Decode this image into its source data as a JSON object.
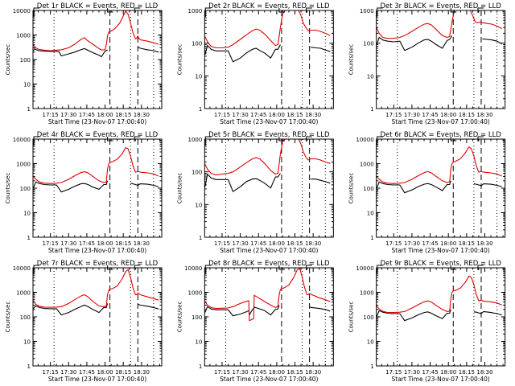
{
  "figure": {
    "xlabel": "Start Time (23-Nov-07 17:00:40)",
    "ylabel": "Counts/sec",
    "x_ticks": [
      "17:15",
      "17:30",
      "17:45",
      "18:00",
      "18:15",
      "18:30"
    ],
    "x_tick_minutes": [
      15,
      30,
      45,
      60,
      75,
      90
    ],
    "x_range_minutes": [
      0.67,
      106.67
    ],
    "dashed_lines_minutes": [
      64,
      87
    ],
    "dotted_lines_minutes": [
      18,
      81,
      100
    ],
    "marker_S_minutes": 64,
    "marker_E_minutes": 87,
    "colors": {
      "events": "#000000",
      "lld": "#e00000",
      "axes": "#000000"
    }
  },
  "chart_data": [
    {
      "type": "line",
      "title": "Det 1r BLACK = Events, RED = LLD",
      "ylim": [
        1,
        10000
      ],
      "yticks": [
        "1",
        "10",
        "100",
        "1000",
        "10000"
      ],
      "yscale": "log",
      "x": [
        1,
        2,
        5,
        10,
        15,
        20,
        22,
        24,
        30,
        35,
        40,
        43,
        45,
        50,
        55,
        57,
        60,
        61,
        62,
        63,
        64,
        65,
        68,
        72,
        75,
        77,
        79,
        81,
        83,
        85,
        86,
        87,
        88,
        90,
        95,
        100,
        104
      ],
      "series": [
        {
          "name": "LLD (red)",
          "values": [
            400,
            330,
            260,
            240,
            230,
            240,
            245,
            250,
            300,
            420,
            650,
            780,
            620,
            420,
            280,
            245,
            250,
            400,
            900,
            1300,
            1400,
            1450,
            1800,
            3000,
            6000,
            9500,
            7000,
            3000,
            1200,
            700,
            750,
            900,
            700,
            620,
            560,
            480,
            420
          ]
        },
        {
          "name": "Events (black)",
          "values": [
            230,
            270,
            230,
            220,
            215,
            215,
            210,
            140,
            170,
            200,
            250,
            280,
            250,
            190,
            150,
            130,
            220,
            230,
            250,
            null,
            null,
            null,
            null,
            null,
            null,
            null,
            null,
            null,
            null,
            null,
            null,
            320,
            300,
            280,
            250,
            230,
            200
          ]
        }
      ]
    },
    {
      "type": "line",
      "title": "Det 2r BLACK = Events, RED = LLD",
      "ylim": [
        1,
        1000
      ],
      "yticks": [
        "1",
        "10",
        "100",
        "1000"
      ],
      "yscale": "log",
      "x": [
        1,
        3,
        6,
        10,
        15,
        20,
        24,
        30,
        35,
        40,
        43,
        46,
        50,
        55,
        59,
        61,
        63,
        65,
        67,
        78,
        80,
        82,
        84,
        86,
        88,
        92,
        96,
        100,
        104
      ],
      "series": [
        {
          "name": "LLD (red)",
          "values": [
            160,
            110,
            80,
            72,
            72,
            75,
            90,
            130,
            180,
            240,
            270,
            250,
            190,
            120,
            85,
            90,
            300,
            800,
            1000,
            1000,
            700,
            400,
            300,
            240,
            250,
            250,
            230,
            200,
            170
          ]
        },
        {
          "name": "Events (black)",
          "values": [
            45,
            85,
            65,
            58,
            58,
            58,
            27,
            35,
            50,
            65,
            70,
            60,
            50,
            35,
            65,
            65,
            90,
            null,
            null,
            null,
            null,
            null,
            null,
            null,
            75,
            72,
            70,
            62,
            55
          ]
        }
      ]
    },
    {
      "type": "line",
      "title": "Det 3r BLACK = Events, RED = LLD",
      "ylim": [
        1,
        1000
      ],
      "yticks": [
        "1",
        "10",
        "100",
        "1000"
      ],
      "yscale": "log",
      "x": [
        1,
        3,
        6,
        10,
        15,
        20,
        24,
        30,
        35,
        40,
        43,
        46,
        50,
        55,
        59,
        61,
        63,
        65,
        78,
        80,
        82,
        84,
        86,
        88,
        92,
        96,
        100,
        104
      ],
      "series": [
        {
          "name": "LLD (red)",
          "values": [
            290,
            200,
            150,
            140,
            140,
            150,
            170,
            230,
            300,
            380,
            400,
            360,
            260,
            170,
            150,
            160,
            450,
            1000,
            1000,
            700,
            450,
            420,
            440,
            420,
            400,
            380,
            330,
            280
          ]
        },
        {
          "name": "Events (black)",
          "values": [
            90,
            150,
            125,
            115,
            110,
            115,
            60,
            75,
            100,
            125,
            130,
            115,
            90,
            70,
            120,
            130,
            170,
            null,
            null,
            null,
            null,
            null,
            null,
            135,
            130,
            125,
            115,
            95
          ]
        }
      ]
    },
    {
      "type": "line",
      "title": "Det 4r BLACK = Events, RED = LLD",
      "ylim": [
        1,
        10000
      ],
      "yticks": [
        "1",
        "10",
        "100",
        "1000",
        "10000"
      ],
      "yscale": "log",
      "x": [
        1,
        3,
        6,
        10,
        15,
        20,
        24,
        30,
        35,
        40,
        43,
        46,
        50,
        55,
        59,
        61,
        62,
        63,
        64,
        66,
        70,
        74,
        77,
        79,
        81,
        83,
        85,
        87,
        89,
        95,
        100,
        104
      ],
      "series": [
        {
          "name": "LLD (red)",
          "values": [
            300,
            230,
            180,
            160,
            155,
            160,
            170,
            230,
            320,
            430,
            470,
            420,
            300,
            200,
            170,
            180,
            600,
            1000,
            1100,
            1200,
            1500,
            2500,
            4500,
            4000,
            2000,
            800,
            450,
            480,
            450,
            420,
            380,
            310
          ]
        },
        {
          "name": "Events (black)",
          "values": [
            100,
            180,
            155,
            140,
            135,
            135,
            70,
            90,
            120,
            150,
            155,
            140,
            110,
            90,
            140,
            140,
            200,
            null,
            null,
            null,
            null,
            null,
            null,
            null,
            160,
            150,
            140,
            130,
            150,
            145,
            130,
            115
          ]
        }
      ]
    },
    {
      "type": "line",
      "title": "Det 5r BLACK = Events, RED = LLD",
      "ylim": [
        1,
        1000
      ],
      "yticks": [
        "1",
        "10",
        "100",
        "1000"
      ],
      "yscale": "log",
      "x": [
        1,
        3,
        6,
        10,
        15,
        20,
        24,
        30,
        35,
        40,
        43,
        46,
        50,
        55,
        59,
        61,
        63,
        65,
        67,
        78,
        80,
        82,
        84,
        86,
        88,
        92,
        96,
        100,
        104
      ],
      "series": [
        {
          "name": "LLD (red)",
          "values": [
            170,
            120,
            90,
            80,
            85,
            90,
            100,
            140,
            190,
            250,
            270,
            250,
            180,
            110,
            85,
            90,
            350,
            850,
            1000,
            1000,
            700,
            400,
            280,
            230,
            250,
            250,
            230,
            200,
            180
          ]
        },
        {
          "name": "Events (black)",
          "values": [
            35,
            85,
            65,
            58,
            58,
            58,
            25,
            35,
            50,
            60,
            62,
            55,
            45,
            32,
            70,
            70,
            90,
            null,
            null,
            null,
            null,
            null,
            null,
            null,
            60,
            60,
            55,
            50,
            45
          ]
        }
      ]
    },
    {
      "type": "line",
      "title": "Det 6r BLACK = Events, RED = LLD",
      "ylim": [
        1,
        10000
      ],
      "yticks": [
        "1",
        "10",
        "100",
        "1000",
        "10000"
      ],
      "yscale": "log",
      "x": [
        1,
        3,
        6,
        10,
        15,
        20,
        24,
        30,
        35,
        40,
        43,
        46,
        50,
        55,
        59,
        61,
        62,
        63,
        64,
        66,
        70,
        74,
        77,
        79,
        81,
        83,
        85,
        87,
        89,
        95,
        100,
        104
      ],
      "series": [
        {
          "name": "LLD (red)",
          "values": [
            300,
            230,
            180,
            160,
            155,
            160,
            170,
            230,
            320,
            430,
            480,
            420,
            300,
            200,
            170,
            180,
            600,
            1000,
            1150,
            1250,
            1600,
            2800,
            4800,
            4000,
            2000,
            800,
            450,
            480,
            450,
            420,
            380,
            310
          ]
        },
        {
          "name": "Events (black)",
          "values": [
            100,
            180,
            155,
            140,
            135,
            135,
            65,
            85,
            115,
            145,
            155,
            140,
            110,
            80,
            140,
            140,
            200,
            null,
            null,
            null,
            null,
            null,
            null,
            null,
            150,
            145,
            135,
            125,
            150,
            145,
            130,
            115
          ]
        }
      ]
    },
    {
      "type": "line",
      "title": "Det 7r BLACK = Events, RED = LLD",
      "ylim": [
        1,
        10000
      ],
      "yticks": [
        "1",
        "10",
        "100",
        "1000",
        "10000"
      ],
      "yscale": "log",
      "x": [
        1,
        3,
        6,
        10,
        15,
        20,
        24,
        30,
        35,
        40,
        43,
        46,
        50,
        55,
        59,
        61,
        62,
        63,
        64,
        66,
        70,
        74,
        77,
        79,
        81,
        83,
        85,
        86,
        87,
        89,
        95,
        100,
        104
      ],
      "series": [
        {
          "name": "LLD (red)",
          "values": [
            450,
            320,
            270,
            250,
            245,
            250,
            260,
            350,
            500,
            700,
            800,
            650,
            420,
            280,
            260,
            270,
            800,
            1200,
            1350,
            1400,
            1800,
            3500,
            7000,
            8500,
            4000,
            1500,
            800,
            800,
            950,
            800,
            650,
            560,
            480
          ]
        },
        {
          "name": "Events (black)",
          "values": [
            220,
            280,
            240,
            220,
            215,
            215,
            120,
            150,
            200,
            260,
            300,
            260,
            200,
            150,
            240,
            240,
            350,
            null,
            null,
            null,
            null,
            null,
            null,
            null,
            null,
            null,
            null,
            null,
            330,
            300,
            270,
            240,
            210
          ]
        }
      ]
    },
    {
      "type": "line",
      "title": "Det 8r BLACK = Events, RED = LLD",
      "ylim": [
        1,
        10000
      ],
      "yticks": [
        "1",
        "10",
        "100",
        "1000",
        "10000"
      ],
      "yscale": "log",
      "x": [
        1,
        3,
        6,
        10,
        15,
        20,
        24,
        30,
        35,
        37,
        37.5,
        40,
        41,
        41.5,
        45,
        50,
        55,
        59,
        61,
        62,
        63,
        64,
        66,
        70,
        74,
        77,
        79,
        81,
        83,
        85,
        86,
        87,
        89,
        95,
        100,
        104
      ],
      "series": [
        {
          "name": "LLD (red)",
          "values": [
            420,
            300,
            240,
            220,
            225,
            230,
            260,
            350,
            430,
            450,
            70,
            80,
            85,
            750,
            600,
            420,
            300,
            240,
            260,
            800,
            1300,
            1450,
            1500,
            2000,
            4000,
            8500,
            9500,
            4000,
            1500,
            800,
            800,
            900,
            800,
            600,
            500,
            420
          ]
        },
        {
          "name": "Events (black)",
          "values": [
            150,
            260,
            210,
            195,
            195,
            195,
            110,
            130,
            160,
            180,
            120,
            200,
            220,
            250,
            220,
            180,
            120,
            200,
            210,
            300,
            null,
            null,
            null,
            null,
            null,
            null,
            null,
            null,
            null,
            null,
            null,
            250,
            240,
            220,
            200,
            170
          ]
        }
      ]
    },
    {
      "type": "line",
      "title": "Det 9r BLACK = Events, RED = LLD",
      "ylim": [
        1,
        10000
      ],
      "yticks": [
        "1",
        "10",
        "100",
        "1000",
        "10000"
      ],
      "yscale": "log",
      "x": [
        1,
        3,
        6,
        10,
        15,
        20,
        24,
        30,
        35,
        40,
        43,
        46,
        50,
        55,
        59,
        61,
        62,
        63,
        64,
        66,
        70,
        74,
        77,
        79,
        81,
        83,
        85,
        87,
        89,
        95,
        100,
        104
      ],
      "series": [
        {
          "name": "LLD (red)",
          "values": [
            280,
            210,
            170,
            150,
            150,
            155,
            165,
            230,
            310,
            410,
            450,
            400,
            290,
            200,
            165,
            170,
            550,
            1000,
            1150,
            1200,
            1500,
            2600,
            4600,
            4000,
            2000,
            800,
            450,
            470,
            440,
            410,
            370,
            300
          ]
        },
        {
          "name": "Events (black)",
          "values": [
            100,
            180,
            155,
            140,
            135,
            135,
            70,
            90,
            120,
            150,
            160,
            140,
            110,
            85,
            140,
            140,
            200,
            null,
            null,
            null,
            null,
            null,
            null,
            null,
            160,
            155,
            145,
            135,
            165,
            150,
            135,
            120
          ]
        }
      ]
    }
  ]
}
